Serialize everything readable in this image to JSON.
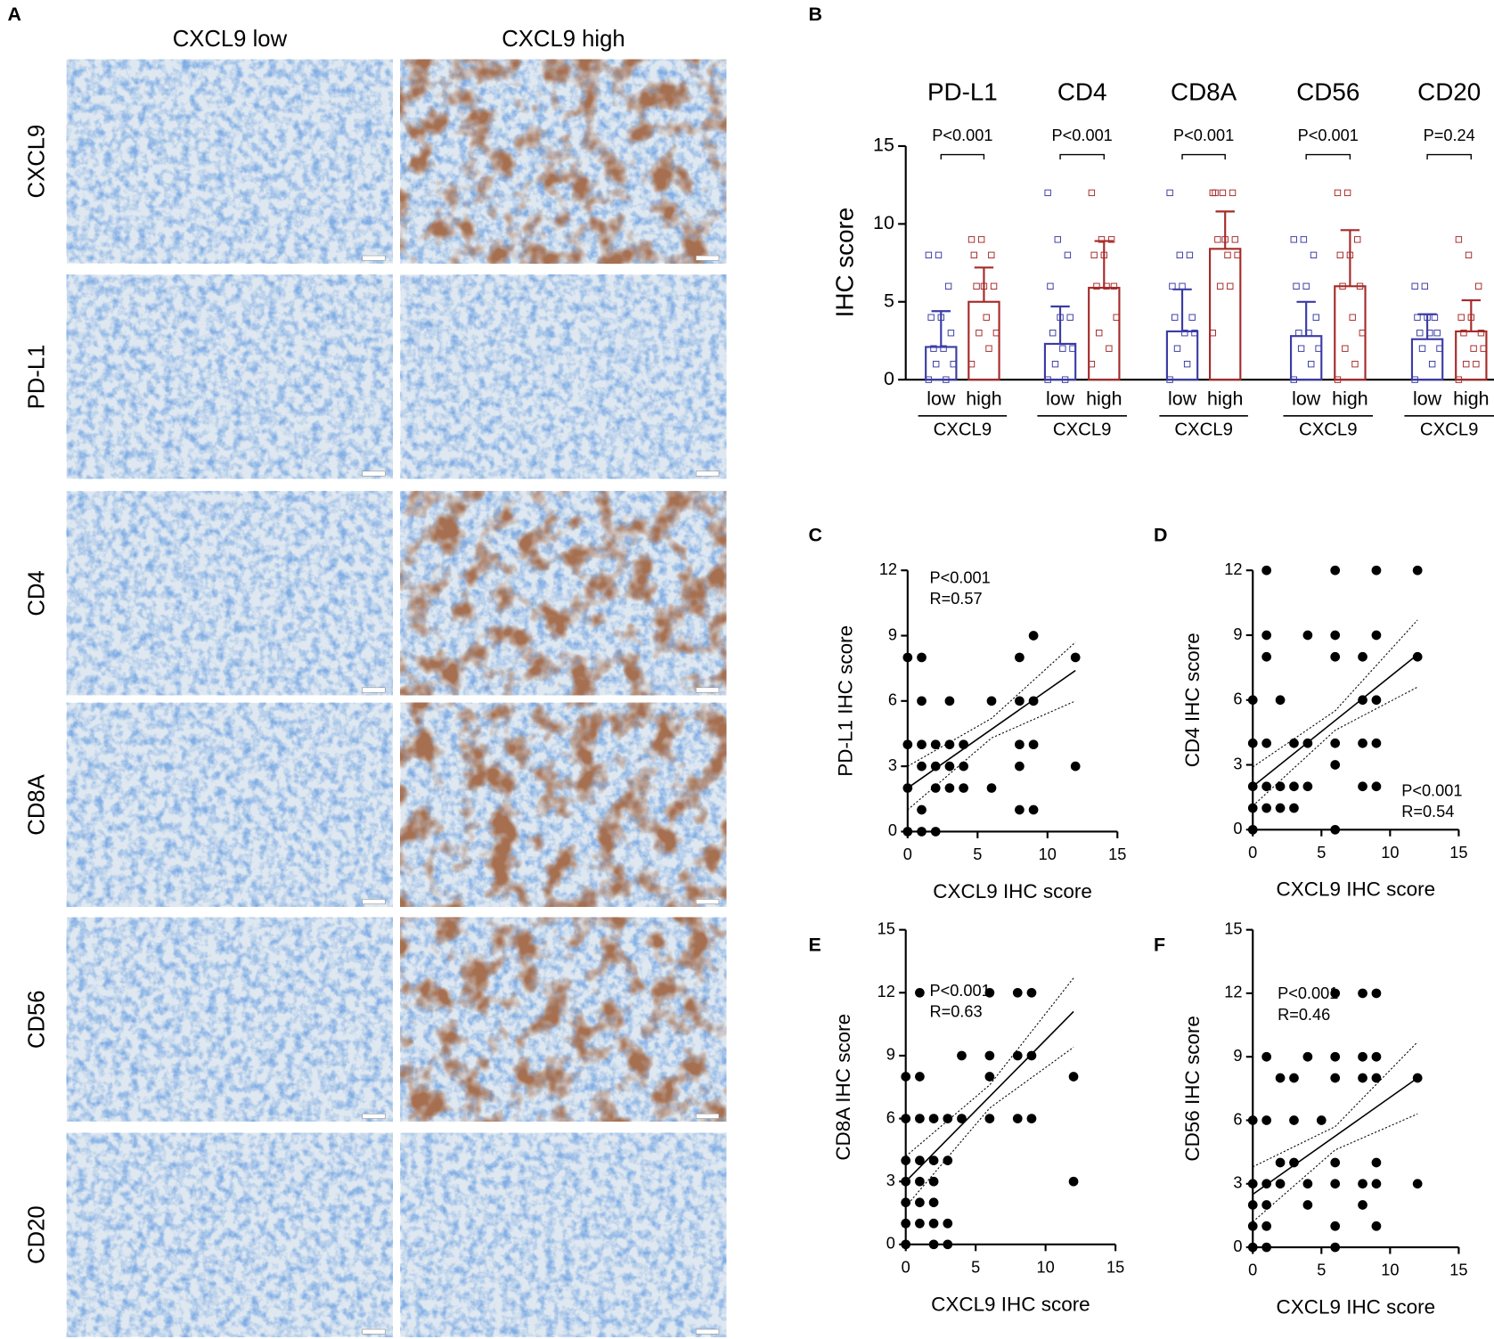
{
  "panels": [
    "A",
    "B",
    "C",
    "D",
    "E",
    "F"
  ],
  "panel_a": {
    "columns": [
      "CXCL9 low",
      "CXCL9 high"
    ],
    "rows": [
      "CXCL9",
      "PD-L1",
      "CD4",
      "CD8A",
      "CD56",
      "CD20"
    ]
  },
  "chart_data": [
    {
      "type": "bar",
      "categories": [
        "PD-L1",
        "CD4",
        "CD8A",
        "CD56",
        "CD20"
      ],
      "p_values": [
        "P<0.001",
        "P<0.001",
        "P<0.001",
        "P<0.001",
        "P=0.24"
      ],
      "group_axis_label": "CXCL9",
      "ylabel": "IHC score",
      "ylim": [
        0,
        15
      ],
      "yticks": [
        0,
        5,
        10,
        15
      ],
      "series": [
        {
          "name": "low",
          "color": "#3b3ba6",
          "values": [
            2.1,
            2.3,
            3.1,
            2.8,
            2.6
          ],
          "errors": [
            2.3,
            2.4,
            2.7,
            2.2,
            1.6
          ],
          "points": [
            [
              0,
              0,
              1,
              1,
              2,
              2,
              3,
              4,
              4,
              6,
              8,
              8
            ],
            [
              0,
              0,
              1,
              2,
              2,
              3,
              4,
              4,
              6,
              8,
              9,
              12
            ],
            [
              0,
              1,
              2,
              3,
              3,
              4,
              4,
              6,
              6,
              8,
              8,
              12
            ],
            [
              0,
              1,
              2,
              2,
              3,
              3,
              4,
              6,
              6,
              8,
              9,
              9
            ],
            [
              0,
              1,
              2,
              2,
              3,
              3,
              3,
              4,
              4,
              4,
              6,
              6
            ]
          ]
        },
        {
          "name": "high",
          "color": "#a62a2a",
          "values": [
            5.0,
            5.9,
            8.4,
            6.0,
            3.1
          ],
          "errors": [
            2.2,
            3.0,
            2.4,
            3.6,
            2.0
          ],
          "points": [
            [
              1,
              2,
              3,
              3,
              4,
              6,
              6,
              6,
              8,
              8,
              9,
              9
            ],
            [
              1,
              2,
              3,
              4,
              6,
              6,
              6,
              8,
              8,
              9,
              9,
              12
            ],
            [
              3,
              6,
              6,
              8,
              8,
              9,
              9,
              9,
              12,
              12,
              12,
              12
            ],
            [
              0,
              1,
              2,
              3,
              4,
              6,
              6,
              8,
              8,
              9,
              12,
              12
            ],
            [
              0,
              1,
              1,
              2,
              2,
              3,
              3,
              4,
              4,
              6,
              8,
              9
            ]
          ]
        }
      ]
    },
    {
      "type": "scatter",
      "color": "#000000",
      "xlabel": "CXCL9 IHC score",
      "ylabel": "PD-L1 IHC score",
      "annotations": [
        "P<0.001",
        "R=0.57"
      ],
      "xlim": [
        0,
        15
      ],
      "ylim": [
        0,
        12
      ],
      "xticks": [
        0,
        5,
        10,
        15
      ],
      "yticks": [
        0,
        3,
        6,
        9,
        12
      ],
      "x": [
        0,
        1,
        0,
        1,
        2,
        0,
        1,
        1,
        2,
        2,
        3,
        3,
        3,
        4,
        4,
        4,
        6,
        6,
        8,
        8,
        8,
        8,
        9,
        9,
        9,
        9,
        12,
        12,
        1,
        0,
        1,
        2,
        3,
        8
      ],
      "y": [
        8,
        8,
        4,
        4,
        4,
        2,
        3,
        6,
        3,
        2,
        6,
        3,
        2,
        3,
        4,
        2,
        6,
        2,
        8,
        4,
        3,
        1,
        9,
        6,
        4,
        1,
        8,
        3,
        1,
        0,
        0,
        0,
        4,
        6
      ],
      "fit": {
        "x": [
          0,
          12
        ],
        "y": [
          2,
          7.4
        ]
      },
      "band": {
        "x": [
          0,
          6,
          12
        ],
        "upper": [
          3.0,
          5.2,
          8.7
        ],
        "lower": [
          1.0,
          4.3,
          6.0
        ]
      }
    },
    {
      "type": "scatter",
      "color": "#000000",
      "xlabel": "CXCL9 IHC score",
      "ylabel": "CD4 IHC score",
      "annotations": [
        "P<0.001",
        "R=0.54"
      ],
      "xlim": [
        0,
        15
      ],
      "ylim": [
        0,
        12
      ],
      "xticks": [
        0,
        5,
        10,
        15
      ],
      "yticks": [
        0,
        3,
        6,
        9,
        12
      ],
      "x": [
        0,
        0,
        0,
        0,
        0,
        1,
        1,
        1,
        1,
        1,
        1,
        2,
        2,
        2,
        3,
        3,
        3,
        4,
        4,
        4,
        6,
        6,
        6,
        6,
        6,
        6,
        8,
        8,
        8,
        8,
        9,
        9,
        9,
        9,
        9,
        12,
        12
      ],
      "y": [
        6,
        4,
        2,
        1,
        0,
        12,
        9,
        8,
        4,
        2,
        1,
        6,
        2,
        1,
        2,
        1,
        4,
        9,
        4,
        2,
        12,
        9,
        8,
        4,
        3,
        0,
        8,
        6,
        4,
        2,
        12,
        9,
        6,
        4,
        2,
        12,
        8
      ],
      "fit": {
        "x": [
          0,
          12
        ],
        "y": [
          2,
          8.1
        ]
      },
      "band": {
        "x": [
          0,
          6,
          12
        ],
        "upper": [
          2.9,
          5.5,
          9.7
        ],
        "lower": [
          1.1,
          4.6,
          6.6
        ]
      }
    },
    {
      "type": "scatter",
      "color": "#000000",
      "xlabel": "CXCL9 IHC score",
      "ylabel": "CD8A IHC score",
      "annotations": [
        "P<0.001",
        "R=0.63"
      ],
      "xlim": [
        0,
        15
      ],
      "ylim": [
        0,
        15
      ],
      "xticks": [
        0,
        5,
        10,
        15
      ],
      "yticks": [
        0,
        3,
        6,
        9,
        12,
        15
      ],
      "x": [
        0,
        0,
        0,
        0,
        0,
        0,
        0,
        1,
        1,
        1,
        1,
        1,
        1,
        1,
        2,
        2,
        2,
        2,
        2,
        2,
        3,
        3,
        3,
        3,
        4,
        4,
        6,
        6,
        6,
        6,
        8,
        8,
        8,
        9,
        9,
        9,
        12,
        12
      ],
      "y": [
        8,
        6,
        4,
        3,
        2,
        1,
        0,
        12,
        8,
        6,
        4,
        3,
        2,
        1,
        6,
        4,
        3,
        2,
        1,
        0,
        6,
        4,
        1,
        0,
        9,
        6,
        12,
        9,
        8,
        6,
        12,
        9,
        6,
        12,
        9,
        6,
        8,
        3
      ],
      "fit": {
        "x": [
          0,
          12
        ],
        "y": [
          3,
          11.1
        ]
      },
      "band": {
        "x": [
          0,
          6,
          12
        ],
        "upper": [
          4.2,
          7.6,
          12.7
        ],
        "lower": [
          1.8,
          6.5,
          9.4
        ]
      }
    },
    {
      "type": "scatter",
      "color": "#000000",
      "xlabel": "CXCL9 IHC score",
      "ylabel": "CD56  IHC score",
      "annotations": [
        "P<0.001",
        "R=0.46"
      ],
      "xlim": [
        0,
        15
      ],
      "ylim": [
        0,
        15
      ],
      "xticks": [
        0,
        5,
        10,
        15
      ],
      "yticks": [
        0,
        3,
        6,
        9,
        12,
        15
      ],
      "x": [
        0,
        0,
        0,
        0,
        0,
        1,
        1,
        1,
        1,
        1,
        1,
        2,
        2,
        2,
        3,
        3,
        3,
        4,
        4,
        4,
        5,
        6,
        6,
        6,
        6,
        6,
        6,
        6,
        8,
        8,
        8,
        8,
        8,
        9,
        9,
        9,
        9,
        9,
        9,
        12,
        12
      ],
      "y": [
        6,
        3,
        2,
        1,
        0,
        9,
        6,
        3,
        2,
        1,
        0,
        8,
        4,
        3,
        8,
        6,
        4,
        9,
        3,
        2,
        6,
        12,
        9,
        8,
        4,
        3,
        1,
        0,
        12,
        9,
        8,
        3,
        2,
        12,
        9,
        8,
        4,
        3,
        1,
        8,
        3
      ],
      "fit": {
        "x": [
          0,
          12
        ],
        "y": [
          2.5,
          8.0
        ]
      },
      "band": {
        "x": [
          0,
          6,
          12
        ],
        "upper": [
          3.8,
          5.7,
          9.7
        ],
        "lower": [
          1.2,
          4.6,
          6.3
        ]
      }
    }
  ]
}
